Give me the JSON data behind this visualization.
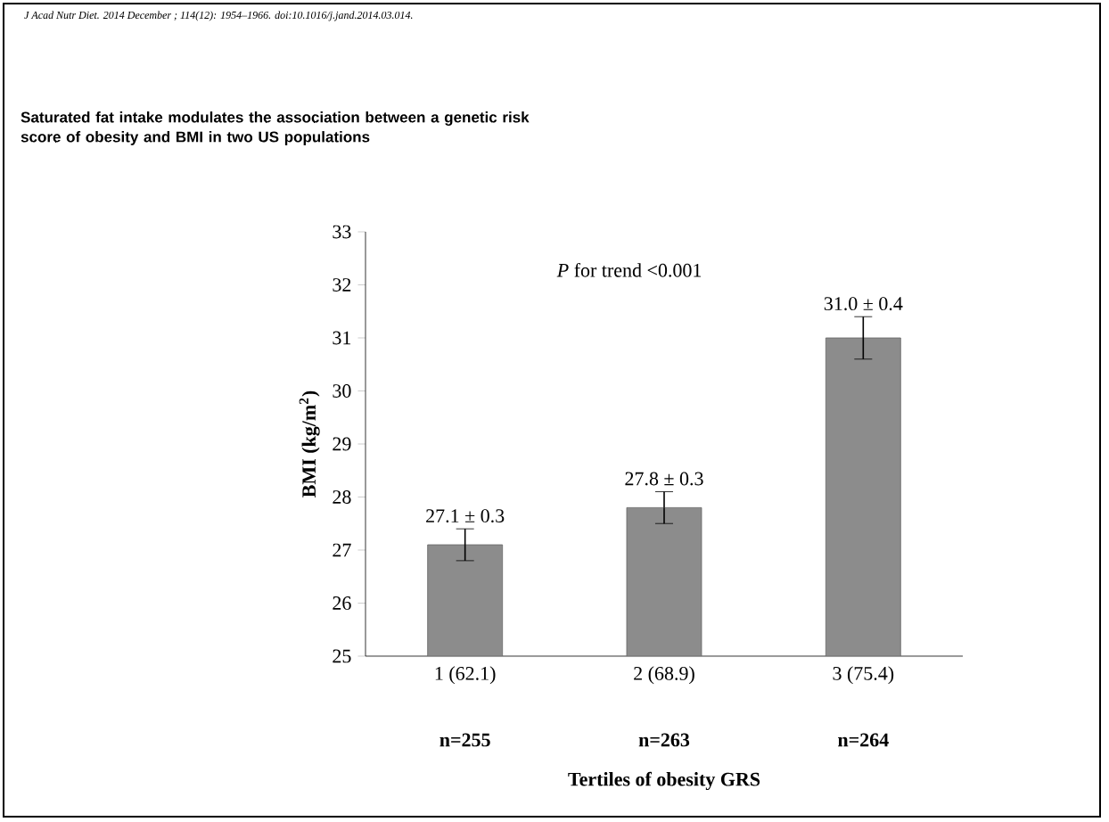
{
  "chart_data": {
    "type": "bar",
    "title": "Saturated fat intake modulates the association between a genetic risk score of obesity and BMI in two US populations",
    "xlabel": "Tertiles of obesity GRS",
    "ylabel": "BMI (kg/m$^{2}$)",
    "annotations": [
      "J Acad Nutr Diet. 2014 December ; 114(12): 1954–1966. doi:10.1016/j.jand.2014.03.014.",
      "*P* for trend <0.001",
      "n=255",
      "n=263",
      "n=264"
    ],
    "categories": [
      "1 (62.1)",
      "2 (68.9)",
      "3 (75.4)"
    ],
    "values": [
      27.1,
      27.8,
      31.0
    ],
    "errors": [
      0.3,
      0.3,
      0.4
    ],
    "value_labels": [
      "27.1 ± 0.3",
      "27.8 ± 0.3",
      "31.0 ± 0.4"
    ],
    "color": "#8c8c8c",
    "ylim": [
      25,
      33
    ],
    "yticks": [
      25,
      26,
      27,
      28,
      29,
      30,
      31,
      32,
      33
    ]
  }
}
